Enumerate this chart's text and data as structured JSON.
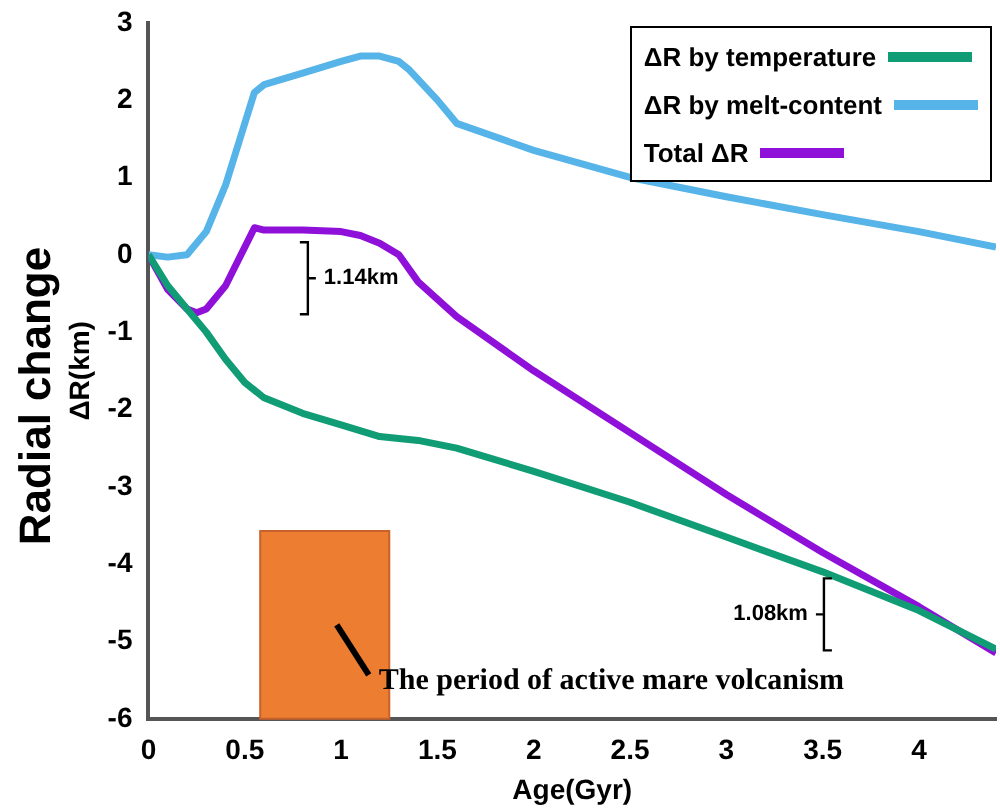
{
  "chart_data": {
    "type": "line",
    "xlabel": "Age(Gyr)",
    "ylabel": "ΔR(km)",
    "xlim": [
      0,
      4.4
    ],
    "xticks": [
      0,
      0.5,
      1,
      1.5,
      2,
      2.5,
      3,
      3.5,
      4
    ],
    "ylim": [
      -6,
      3
    ],
    "yticks": [
      -6,
      -5,
      -4,
      -3,
      -2,
      -1,
      0,
      1,
      2,
      3
    ],
    "legend": "top right",
    "grid": false,
    "marker": "none",
    "line_style": "solid",
    "series": [
      {
        "name": "ΔR by temperature",
        "color": "#109c74",
        "x": [
          0,
          0.1,
          0.2,
          0.3,
          0.4,
          0.5,
          0.6,
          0.8,
          1.0,
          1.2,
          1.4,
          1.6,
          2,
          2.5,
          3,
          3.5,
          4,
          4.4
        ],
        "values": [
          0,
          -0.4,
          -0.7,
          -1.0,
          -1.35,
          -1.65,
          -1.85,
          -2.05,
          -2.2,
          -2.35,
          -2.4,
          -2.5,
          -2.8,
          -3.2,
          -3.65,
          -4.1,
          -4.6,
          -5.1
        ]
      },
      {
        "name": "ΔR by melt-content",
        "color": "#56b4e9",
        "x": [
          0,
          0.1,
          0.2,
          0.3,
          0.4,
          0.5,
          0.55,
          0.6,
          0.8,
          1.0,
          1.1,
          1.2,
          1.3,
          1.35,
          1.5,
          1.6,
          2,
          2.5,
          3,
          3.5,
          4,
          4.4
        ],
        "values": [
          0,
          -0.03,
          0,
          0.3,
          0.9,
          1.7,
          2.1,
          2.2,
          2.35,
          2.5,
          2.57,
          2.57,
          2.5,
          2.4,
          2.0,
          1.7,
          1.35,
          1.0,
          0.75,
          0.52,
          0.3,
          0.1
        ]
      },
      {
        "name": "Total ΔR",
        "color": "#8f10d8",
        "x": [
          0,
          0.1,
          0.2,
          0.25,
          0.3,
          0.4,
          0.5,
          0.55,
          0.6,
          0.8,
          1.0,
          1.1,
          1.2,
          1.3,
          1.4,
          1.6,
          2,
          2.5,
          3,
          3.5,
          4,
          4.4
        ],
        "values": [
          0,
          -0.45,
          -0.7,
          -0.75,
          -0.7,
          -0.4,
          0.1,
          0.35,
          0.32,
          0.32,
          0.3,
          0.25,
          0.15,
          0,
          -0.35,
          -0.8,
          -1.5,
          -2.3,
          -3.1,
          -3.85,
          -4.55,
          -5.15
        ]
      }
    ],
    "bands": [
      {
        "axis": "x",
        "from": 0.58,
        "to": 1.25,
        "label": "The period of active mare volcanism",
        "color": "#ed7d31"
      }
    ],
    "annotations": [
      "Radial change",
      "1.14km",
      "1.08km"
    ]
  }
}
